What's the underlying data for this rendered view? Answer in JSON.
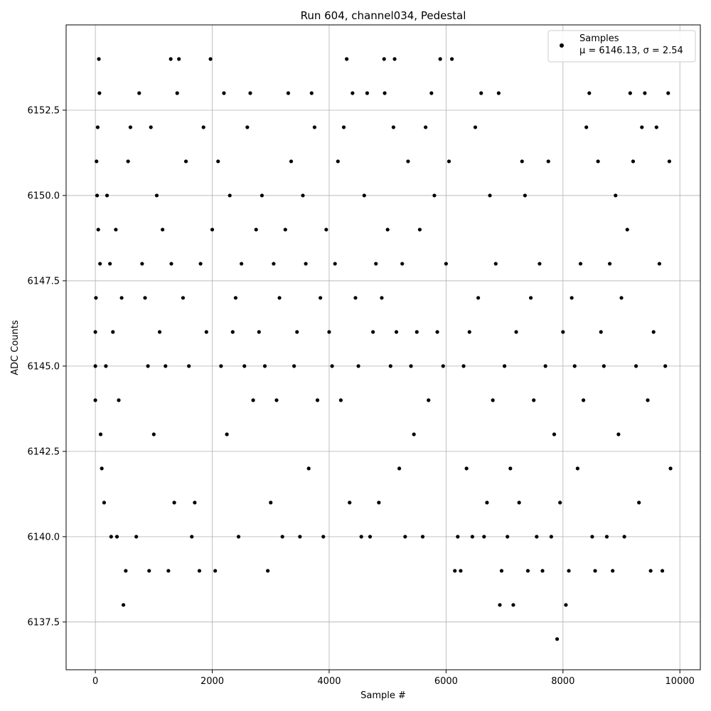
{
  "chart_data": {
    "type": "scatter",
    "title": "Run 604, channel034, Pedestal",
    "xlabel": "Sample #",
    "ylabel": "ADC Counts",
    "xlim": [
      -500,
      10350
    ],
    "ylim": [
      6136.1,
      6155.0
    ],
    "xticks": [
      0,
      2000,
      4000,
      6000,
      8000,
      10000
    ],
    "xtick_labels": [
      "0",
      "2000",
      "4000",
      "6000",
      "8000",
      "10000"
    ],
    "yticks": [
      6137.5,
      6140.0,
      6142.5,
      6145.0,
      6147.5,
      6150.0,
      6152.5
    ],
    "ytick_labels": [
      "6137.5",
      "6140.0",
      "6142.5",
      "6145.0",
      "6147.5",
      "6150.0",
      "6152.5"
    ],
    "grid": true,
    "legend": {
      "placement": "top-right",
      "entries": [
        "Samples",
        "μ = 6146.13, σ = 2.54"
      ]
    },
    "marker_color": "#000000",
    "series": [
      {
        "name": "Samples",
        "points": [
          [
            0,
            6145
          ],
          [
            0,
            6144
          ],
          [
            0,
            6146
          ],
          [
            10,
            6147
          ],
          [
            20,
            6151
          ],
          [
            30,
            6150
          ],
          [
            40,
            6152
          ],
          [
            50,
            6149
          ],
          [
            60,
            6154
          ],
          [
            70,
            6153
          ],
          [
            80,
            6148
          ],
          [
            90,
            6143
          ],
          [
            110,
            6142
          ],
          [
            150,
            6141
          ],
          [
            180,
            6145
          ],
          [
            200,
            6150
          ],
          [
            250,
            6148
          ],
          [
            270,
            6140
          ],
          [
            300,
            6146
          ],
          [
            350,
            6149
          ],
          [
            370,
            6140
          ],
          [
            400,
            6144
          ],
          [
            450,
            6147
          ],
          [
            480,
            6138
          ],
          [
            520,
            6139
          ],
          [
            560,
            6151
          ],
          [
            600,
            6152
          ],
          [
            700,
            6140
          ],
          [
            750,
            6153
          ],
          [
            800,
            6148
          ],
          [
            850,
            6147
          ],
          [
            900,
            6145
          ],
          [
            920,
            6139
          ],
          [
            950,
            6152
          ],
          [
            1000,
            6143
          ],
          [
            1050,
            6150
          ],
          [
            1100,
            6146
          ],
          [
            1150,
            6149
          ],
          [
            1200,
            6145
          ],
          [
            1250,
            6139
          ],
          [
            1290,
            6154
          ],
          [
            1300,
            6148
          ],
          [
            1350,
            6141
          ],
          [
            1400,
            6153
          ],
          [
            1430,
            6154
          ],
          [
            1500,
            6147
          ],
          [
            1550,
            6151
          ],
          [
            1600,
            6145
          ],
          [
            1650,
            6140
          ],
          [
            1700,
            6141
          ],
          [
            1780,
            6139
          ],
          [
            1800,
            6148
          ],
          [
            1850,
            6152
          ],
          [
            1900,
            6146
          ],
          [
            1970,
            6154
          ],
          [
            2000,
            6149
          ],
          [
            2050,
            6139
          ],
          [
            2100,
            6151
          ],
          [
            2150,
            6145
          ],
          [
            2200,
            6153
          ],
          [
            2250,
            6143
          ],
          [
            2300,
            6150
          ],
          [
            2350,
            6146
          ],
          [
            2400,
            6147
          ],
          [
            2450,
            6140
          ],
          [
            2500,
            6148
          ],
          [
            2550,
            6145
          ],
          [
            2600,
            6152
          ],
          [
            2650,
            6153
          ],
          [
            2700,
            6144
          ],
          [
            2750,
            6149
          ],
          [
            2800,
            6146
          ],
          [
            2850,
            6150
          ],
          [
            2900,
            6145
          ],
          [
            2950,
            6139
          ],
          [
            3000,
            6141
          ],
          [
            3050,
            6148
          ],
          [
            3100,
            6144
          ],
          [
            3150,
            6147
          ],
          [
            3200,
            6140
          ],
          [
            3250,
            6149
          ],
          [
            3300,
            6153
          ],
          [
            3350,
            6151
          ],
          [
            3400,
            6145
          ],
          [
            3450,
            6146
          ],
          [
            3500,
            6140
          ],
          [
            3550,
            6150
          ],
          [
            3600,
            6148
          ],
          [
            3650,
            6142
          ],
          [
            3700,
            6153
          ],
          [
            3750,
            6152
          ],
          [
            3800,
            6144
          ],
          [
            3850,
            6147
          ],
          [
            3900,
            6140
          ],
          [
            3950,
            6149
          ],
          [
            4000,
            6146
          ],
          [
            4050,
            6145
          ],
          [
            4100,
            6148
          ],
          [
            4150,
            6151
          ],
          [
            4200,
            6144
          ],
          [
            4250,
            6152
          ],
          [
            4300,
            6154
          ],
          [
            4350,
            6141
          ],
          [
            4400,
            6153
          ],
          [
            4450,
            6147
          ],
          [
            4500,
            6145
          ],
          [
            4550,
            6140
          ],
          [
            4600,
            6150
          ],
          [
            4650,
            6153
          ],
          [
            4700,
            6140
          ],
          [
            4750,
            6146
          ],
          [
            4800,
            6148
          ],
          [
            4850,
            6141
          ],
          [
            4900,
            6147
          ],
          [
            4940,
            6154
          ],
          [
            4950,
            6153
          ],
          [
            5000,
            6149
          ],
          [
            5050,
            6145
          ],
          [
            5100,
            6152
          ],
          [
            5120,
            6154
          ],
          [
            5150,
            6146
          ],
          [
            5200,
            6142
          ],
          [
            5250,
            6148
          ],
          [
            5300,
            6140
          ],
          [
            5350,
            6151
          ],
          [
            5400,
            6145
          ],
          [
            5450,
            6143
          ],
          [
            5500,
            6146
          ],
          [
            5550,
            6149
          ],
          [
            5600,
            6140
          ],
          [
            5650,
            6152
          ],
          [
            5700,
            6144
          ],
          [
            5750,
            6153
          ],
          [
            5800,
            6150
          ],
          [
            5850,
            6146
          ],
          [
            5900,
            6154
          ],
          [
            5950,
            6145
          ],
          [
            6000,
            6148
          ],
          [
            6050,
            6151
          ],
          [
            6100,
            6154
          ],
          [
            6150,
            6139
          ],
          [
            6200,
            6140
          ],
          [
            6250,
            6139
          ],
          [
            6300,
            6145
          ],
          [
            6350,
            6142
          ],
          [
            6400,
            6146
          ],
          [
            6450,
            6140
          ],
          [
            6500,
            6152
          ],
          [
            6550,
            6147
          ],
          [
            6600,
            6153
          ],
          [
            6650,
            6140
          ],
          [
            6700,
            6141
          ],
          [
            6750,
            6150
          ],
          [
            6800,
            6144
          ],
          [
            6850,
            6148
          ],
          [
            6900,
            6153
          ],
          [
            6920,
            6138
          ],
          [
            6950,
            6139
          ],
          [
            7000,
            6145
          ],
          [
            7050,
            6140
          ],
          [
            7100,
            6142
          ],
          [
            7150,
            6138
          ],
          [
            7200,
            6146
          ],
          [
            7250,
            6141
          ],
          [
            7300,
            6151
          ],
          [
            7350,
            6150
          ],
          [
            7400,
            6139
          ],
          [
            7450,
            6147
          ],
          [
            7500,
            6144
          ],
          [
            7550,
            6140
          ],
          [
            7600,
            6148
          ],
          [
            7650,
            6139
          ],
          [
            7700,
            6145
          ],
          [
            7750,
            6151
          ],
          [
            7800,
            6140
          ],
          [
            7850,
            6143
          ],
          [
            7900,
            6137
          ],
          [
            7950,
            6141
          ],
          [
            8000,
            6146
          ],
          [
            8050,
            6138
          ],
          [
            8100,
            6139
          ],
          [
            8150,
            6147
          ],
          [
            8200,
            6145
          ],
          [
            8250,
            6142
          ],
          [
            8300,
            6148
          ],
          [
            8350,
            6144
          ],
          [
            8400,
            6152
          ],
          [
            8450,
            6153
          ],
          [
            8500,
            6140
          ],
          [
            8550,
            6139
          ],
          [
            8600,
            6151
          ],
          [
            8650,
            6146
          ],
          [
            8700,
            6145
          ],
          [
            8750,
            6140
          ],
          [
            8800,
            6148
          ],
          [
            8850,
            6139
          ],
          [
            8900,
            6150
          ],
          [
            8950,
            6143
          ],
          [
            9000,
            6147
          ],
          [
            9050,
            6140
          ],
          [
            9100,
            6149
          ],
          [
            9150,
            6153
          ],
          [
            9200,
            6151
          ],
          [
            9250,
            6145
          ],
          [
            9300,
            6141
          ],
          [
            9350,
            6152
          ],
          [
            9400,
            6153
          ],
          [
            9450,
            6144
          ],
          [
            9500,
            6139
          ],
          [
            9550,
            6146
          ],
          [
            9600,
            6152
          ],
          [
            9650,
            6148
          ],
          [
            9700,
            6139
          ],
          [
            9750,
            6145
          ],
          [
            9800,
            6153
          ],
          [
            9820,
            6151
          ],
          [
            9840,
            6142
          ]
        ]
      }
    ]
  }
}
